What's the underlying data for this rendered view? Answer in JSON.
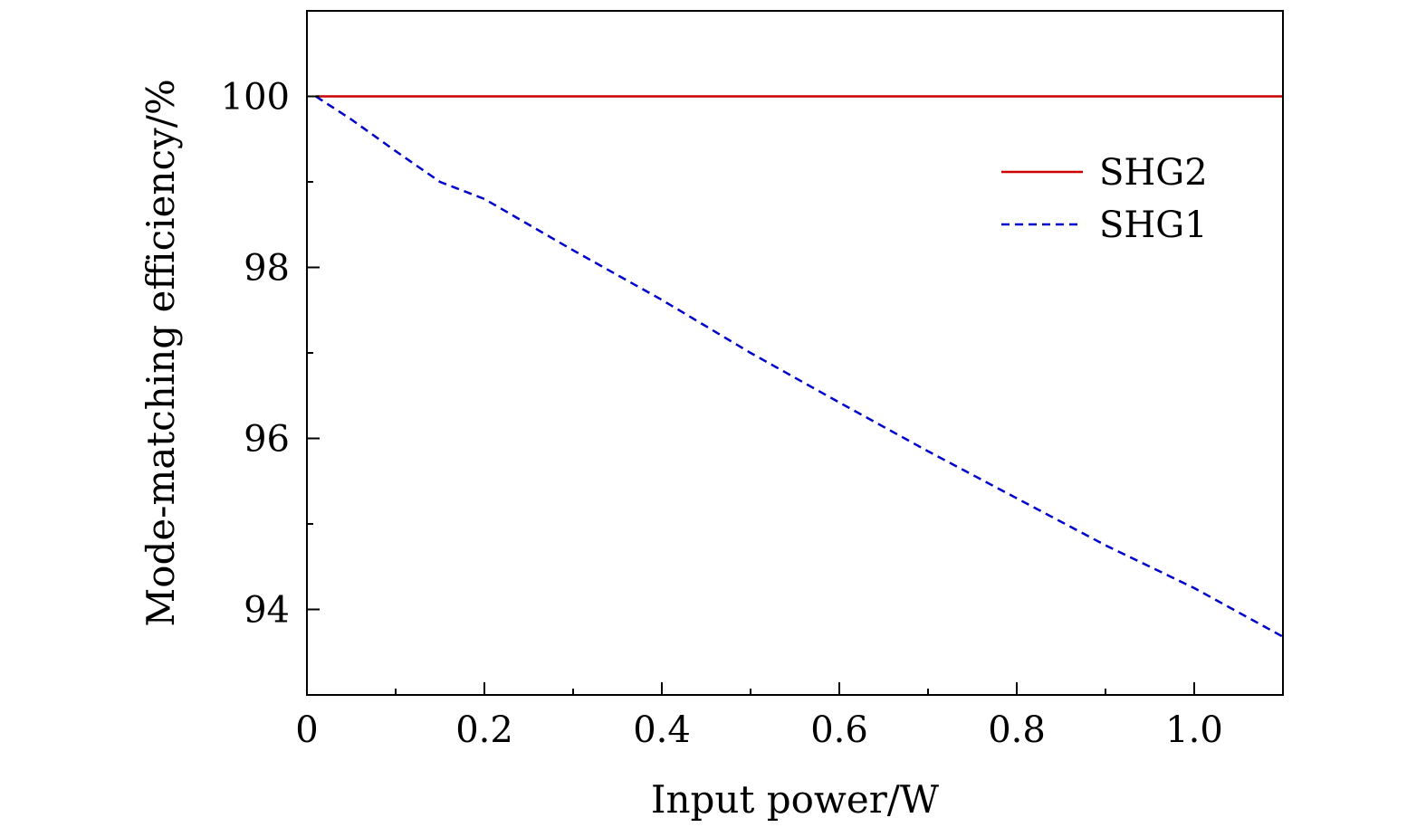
{
  "chart_data": {
    "type": "line",
    "title": "",
    "xlabel": "Input power/W",
    "ylabel": "Mode-matching efficiency/%",
    "xlim": [
      0,
      1.1
    ],
    "ylim": [
      93,
      101
    ],
    "x_ticks": [
      0,
      0.2,
      0.4,
      0.6,
      0.8,
      1.0
    ],
    "x_tick_labels": [
      "0",
      "0.2",
      "0.4",
      "0.6",
      "0.8",
      "1.0"
    ],
    "x_minor_ticks": [
      0.1,
      0.3,
      0.5,
      0.7,
      0.9
    ],
    "y_ticks": [
      94,
      96,
      98,
      100
    ],
    "y_tick_labels": [
      "94",
      "96",
      "98",
      "100"
    ],
    "y_minor_ticks": [
      95,
      97,
      99
    ],
    "grid": false,
    "legend_position": "top-right",
    "series": [
      {
        "name": "SHG2",
        "color": "#cc0000",
        "dash": "solid",
        "x": [
          0.01,
          0.1,
          0.2,
          0.3,
          0.4,
          0.5,
          0.6,
          0.7,
          0.8,
          0.9,
          1.0,
          1.1
        ],
        "values": [
          100,
          100,
          100,
          100,
          100,
          100,
          100,
          100,
          100,
          100,
          100,
          100
        ]
      },
      {
        "name": "SHG1",
        "color": "#0000cc",
        "dash": "dashed",
        "x": [
          0.01,
          0.05,
          0.1,
          0.15,
          0.2,
          0.3,
          0.4,
          0.5,
          0.6,
          0.7,
          0.8,
          0.9,
          1.0,
          1.1
        ],
        "values": [
          100,
          99.73,
          99.36,
          99.0,
          98.8,
          98.2,
          97.62,
          97.0,
          96.42,
          95.85,
          95.3,
          94.75,
          94.25,
          93.68
        ]
      }
    ]
  }
}
